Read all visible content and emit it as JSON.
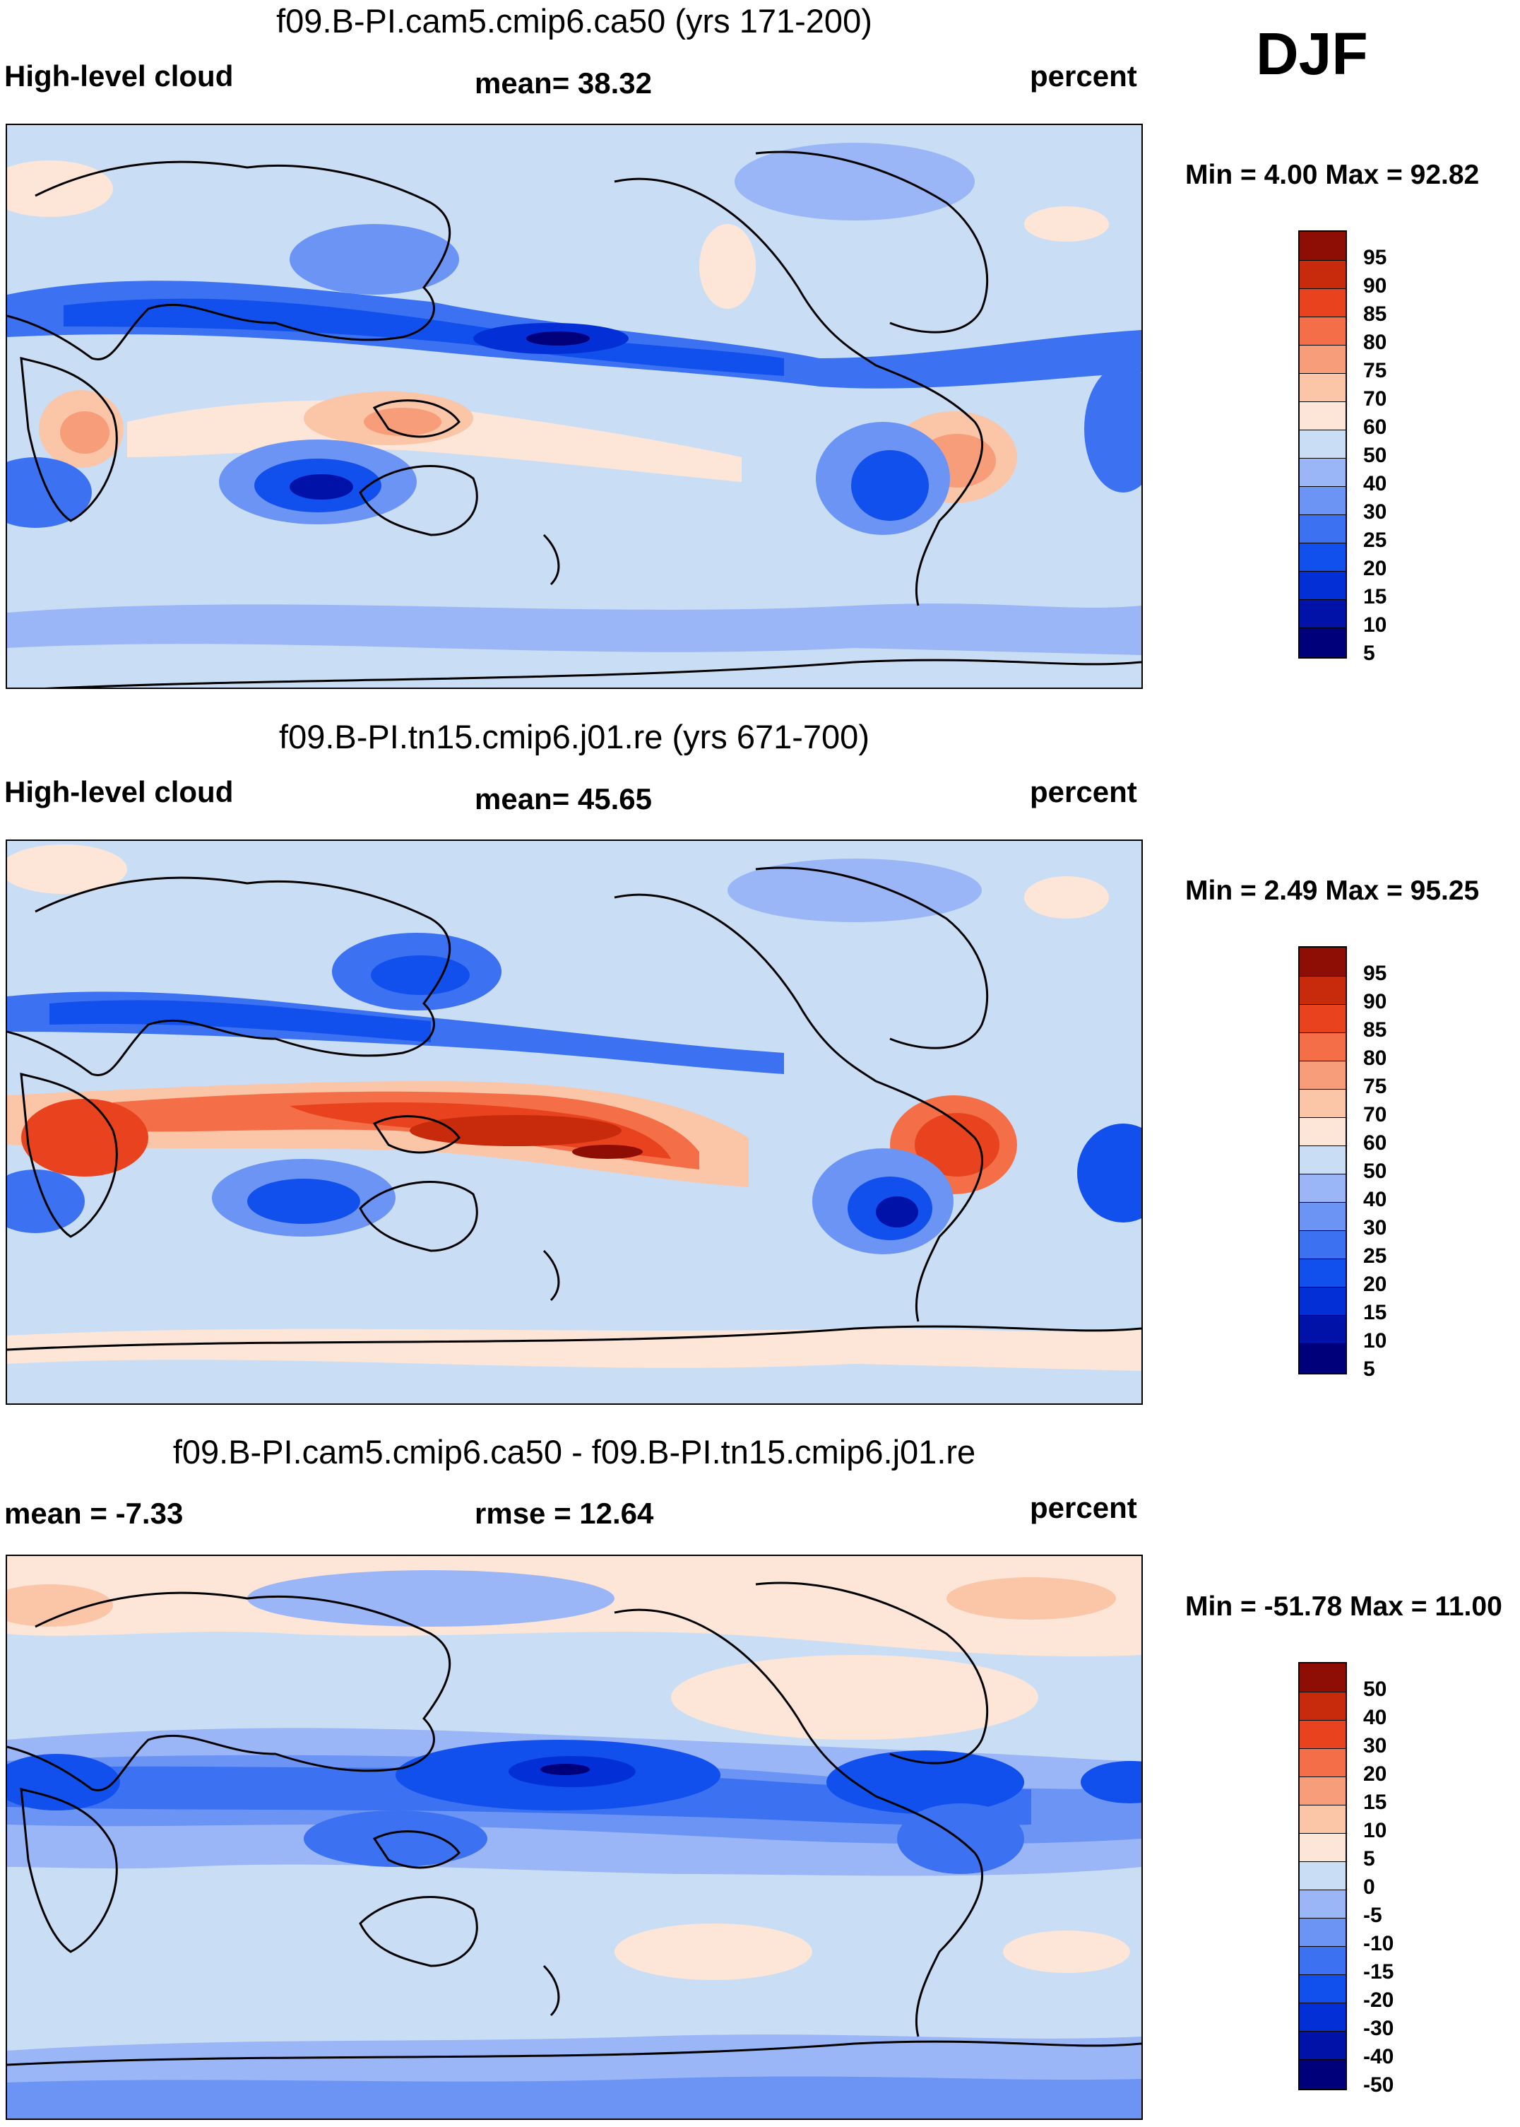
{
  "season": "DJF",
  "panels": [
    {
      "title": "f09.B-PI.cam5.cmip6.ca50 (yrs 171-200)",
      "left_label": "High-level cloud",
      "center_label": "mean=  38.32",
      "units": "percent",
      "minmax": "Min =   4.00 Max =  92.82",
      "legend_labels": [
        "95",
        "90",
        "85",
        "80",
        "75",
        "70",
        "60",
        "50",
        "40",
        "30",
        "25",
        "20",
        "15",
        "10",
        "5"
      ]
    },
    {
      "title": "f09.B-PI.tn15.cmip6.j01.re (yrs 671-700)",
      "left_label": "High-level cloud",
      "center_label": "mean=  45.65",
      "units": "percent",
      "minmax": "Min =   2.49 Max =  95.25",
      "legend_labels": [
        "95",
        "90",
        "85",
        "80",
        "75",
        "70",
        "60",
        "50",
        "40",
        "30",
        "25",
        "20",
        "15",
        "10",
        "5"
      ]
    },
    {
      "title": "f09.B-PI.cam5.cmip6.ca50 - f09.B-PI.tn15.cmip6.j01.re",
      "left_label": "mean =  -7.33",
      "center_label": "rmse =  12.64",
      "units": "percent",
      "minmax": "Min = -51.78 Max =  11.00",
      "legend_labels": [
        "50",
        "40",
        "30",
        "20",
        "15",
        "10",
        "5",
        "0",
        "-5",
        "-10",
        "-15",
        "-20",
        "-30",
        "-40",
        "-50"
      ]
    }
  ],
  "colors": {
    "palette": [
      "#00007a",
      "#0012a8",
      "#0330d6",
      "#1150ec",
      "#3c72f2",
      "#6c94f5",
      "#9ab6f7",
      "#c9def5",
      "#fde6d8",
      "#fbc5a8",
      "#f89d79",
      "#f46f48",
      "#e8431e",
      "#c82a0c",
      "#8e0e05"
    ]
  }
}
